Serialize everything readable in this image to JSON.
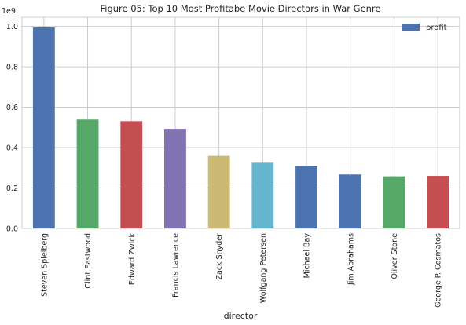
{
  "chart_data": {
    "type": "bar",
    "title": "Figure 05: Top 10 Most Profitabe Movie Directors in War Genre",
    "xlabel": "director",
    "ylabel": "",
    "scale_label": "1e9",
    "categories": [
      "Steven Spielberg",
      "Clint Eastwood",
      "Edward Zwick",
      "Francis Lawrence",
      "Zack Snyder",
      "Wolfgang Petersen",
      "Michael Bay",
      "Jim Abrahams",
      "Oliver Stone",
      "George P. Cosmatos"
    ],
    "values": [
      0.995,
      0.539,
      0.531,
      0.493,
      0.359,
      0.325,
      0.31,
      0.267,
      0.258,
      0.26
    ],
    "bar_colors": [
      "#4c72b0",
      "#55a868",
      "#c44e52",
      "#8172b2",
      "#ccb974",
      "#64b5cd",
      "#4c72b0",
      "#4c72b0",
      "#55a868",
      "#c44e52"
    ],
    "legend": {
      "position": "top-right",
      "entries": [
        {
          "label": "profit",
          "color": "#4c72b0"
        }
      ]
    },
    "yticks": [
      0.0,
      0.2,
      0.4,
      0.6,
      0.8,
      1.0
    ],
    "ylim": [
      0,
      1.045
    ],
    "grid": true
  }
}
